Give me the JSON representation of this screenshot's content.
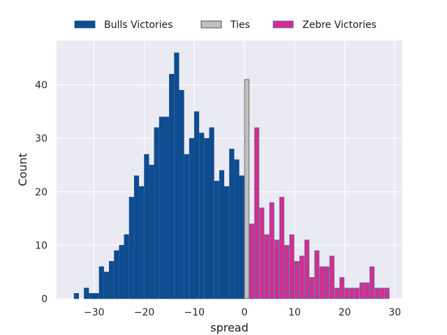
{
  "chart_data": {
    "type": "bar",
    "xlabel": "spread",
    "ylabel": "Count",
    "xlim": [
      -37.5,
      31.5
    ],
    "ylim": [
      0,
      48.3
    ],
    "xticks": [
      -30,
      -20,
      -10,
      0,
      10,
      20,
      30
    ],
    "yticks": [
      0,
      10,
      20,
      30,
      40
    ],
    "xtick_labels": [
      "−30",
      "−20",
      "−10",
      "0",
      "10",
      "20",
      "30"
    ],
    "ytick_labels": [
      "0",
      "10",
      "20",
      "30",
      "40"
    ],
    "grid": true,
    "legend": "top-center, outside plot",
    "bin_width": 1,
    "series": [
      {
        "name": "Bulls Victories",
        "color": "#0f4c8f",
        "edge": "#0f4c8f",
        "x": [
          -34,
          -32,
          -31,
          -30,
          -29,
          -28,
          -27,
          -26,
          -25,
          -24,
          -23,
          -22,
          -21,
          -20,
          -19,
          -18,
          -17,
          -16,
          -15,
          -14,
          -13,
          -12,
          -11,
          -10,
          -9,
          -8,
          -7,
          -6,
          -5,
          -4,
          -3,
          -2,
          -1
        ],
        "values": [
          1,
          2,
          1,
          1,
          6,
          5,
          7,
          9,
          10,
          12,
          19,
          23,
          21,
          27,
          25,
          32,
          34,
          34,
          42,
          46,
          39,
          27,
          30,
          35,
          31,
          30,
          32,
          22,
          24,
          21,
          28,
          26,
          23
        ]
      },
      {
        "name": "Ties",
        "color": "#bfbfbf",
        "edge": "#333333",
        "x": [
          0
        ],
        "values": [
          41
        ]
      },
      {
        "name": "Zebre Victories",
        "color": "#d62d8b",
        "edge": "#3d7fbf",
        "x": [
          1,
          2,
          3,
          4,
          5,
          6,
          7,
          8,
          9,
          10,
          11,
          12,
          13,
          14,
          15,
          16,
          17,
          18,
          19,
          20,
          21,
          22,
          23,
          24,
          25,
          26,
          27,
          28
        ],
        "values": [
          14,
          32,
          17,
          12,
          18,
          11,
          19,
          10,
          12,
          7,
          8,
          11,
          4,
          9,
          6,
          6,
          8,
          2,
          4,
          2,
          2,
          2,
          3,
          3,
          6,
          2,
          2,
          2
        ]
      }
    ]
  }
}
